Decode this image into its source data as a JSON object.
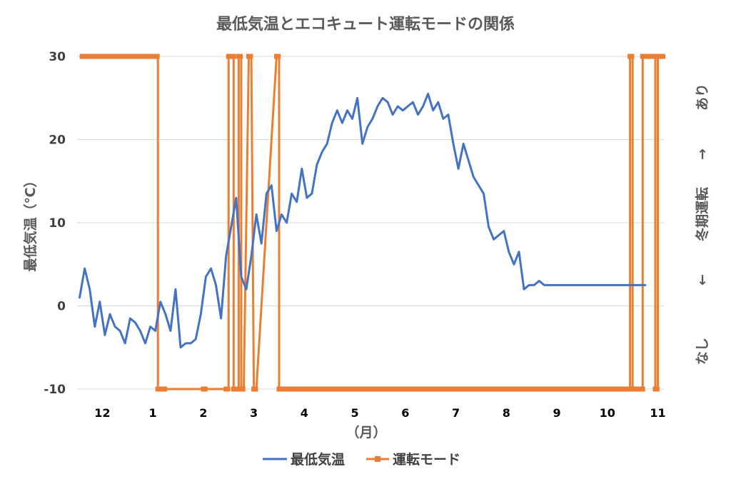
{
  "chart_data": {
    "type": "line",
    "title": "最低気温とエコキュート運転モードの関係",
    "xlabel": "（月）",
    "ylabel": "最低気温（℃）",
    "y2label_top": "あり",
    "y2label_middle": "冬期運転",
    "y2label_bottom": "なし",
    "y2label_up_arrow": "→",
    "y2label_down_arrow": "←",
    "ylim": [
      -10,
      30
    ],
    "yticks": [
      "30",
      "20",
      "10",
      "0",
      "-10"
    ],
    "grid": true,
    "legend_position": "bottom",
    "x_categories": [
      "12",
      "1",
      "2",
      "3",
      "4",
      "5",
      "6",
      "7",
      "8",
      "9",
      "10",
      "11"
    ],
    "x_note": "x values are approximate month positions (12 = start of December, 1 = start of January, 2 = start of February, ...)",
    "series": [
      {
        "name": "最低気温",
        "color": "#4472c4",
        "marker": "none",
        "x": [
          11.55,
          11.65,
          11.75,
          11.85,
          11.95,
          12.05,
          12.15,
          12.25,
          12.35,
          12.45,
          12.55,
          12.65,
          12.75,
          12.85,
          12.95,
          13.05,
          13.15,
          13.25,
          13.35,
          13.45,
          13.55,
          13.65,
          13.75,
          13.85,
          13.95,
          14.05,
          14.15,
          14.25,
          14.35,
          14.45,
          14.55,
          14.65,
          14.75,
          14.85,
          14.95,
          15.05,
          15.15,
          15.25,
          15.35,
          15.45,
          15.55,
          15.65,
          15.75,
          15.85,
          15.95,
          16.05,
          16.15,
          16.25,
          16.35,
          16.45,
          16.55,
          16.65,
          16.75,
          16.85,
          16.95,
          17.05,
          17.15,
          17.25,
          17.35,
          17.45,
          17.55,
          17.65,
          17.75,
          17.85,
          17.95,
          18.05,
          18.15,
          18.25,
          18.35,
          18.45,
          18.55,
          18.65,
          18.75,
          18.85,
          18.95,
          19.05,
          19.15,
          19.25,
          19.35,
          19.45,
          19.55,
          19.65,
          19.75,
          19.85,
          19.95,
          20.05,
          20.15,
          20.25,
          20.35,
          20.45,
          20.55,
          20.65,
          20.75,
          20.85,
          20.95,
          21.05,
          21.15,
          21.25,
          21.35,
          21.45,
          21.55,
          21.65,
          21.75,
          21.85,
          21.95,
          22.05,
          22.15,
          22.25,
          22.35,
          22.45,
          22.55,
          22.65,
          22.75
        ],
        "values": [
          1.0,
          4.5,
          2.0,
          -2.5,
          0.5,
          -3.5,
          -1.0,
          -2.5,
          -3.0,
          -4.5,
          -1.5,
          -2.0,
          -3.0,
          -4.5,
          -2.5,
          -3.0,
          0.5,
          -1.0,
          -3.0,
          2.0,
          -5.0,
          -4.5,
          -4.5,
          -4.0,
          -1.0,
          3.5,
          4.5,
          2.5,
          -1.5,
          6.0,
          9.5,
          13.0,
          3.5,
          2.0,
          6.0,
          11.0,
          7.5,
          13.5,
          14.5,
          9.0,
          11.0,
          10.0,
          13.5,
          12.5,
          16.5,
          13.0,
          13.5,
          17.0,
          18.5,
          19.5,
          22.0,
          23.5,
          22.0,
          23.5,
          22.5,
          25.0,
          19.5,
          21.5,
          22.5,
          24.0,
          25.0,
          24.5,
          23.0,
          24.0,
          23.5,
          24.0,
          24.5,
          23.0,
          24.0,
          25.5,
          23.5,
          24.5,
          22.5,
          23.0,
          19.5,
          16.5,
          19.5,
          17.5,
          15.5,
          14.5,
          13.5,
          9.5,
          8.0,
          8.5,
          9.0,
          6.5,
          5.0,
          6.5,
          2.0,
          2.5,
          2.5,
          3.0,
          2.5,
          2.5,
          2.5,
          2.5,
          2.5,
          2.5,
          2.5,
          2.5,
          2.5,
          2.5,
          2.5,
          2.5,
          2.5,
          2.5,
          2.5,
          2.5,
          2.5,
          2.5,
          2.5,
          2.5,
          2.5
        ]
      },
      {
        "name": "運転モード",
        "color": "#ed7d31",
        "marker": "square",
        "segments": [
          {
            "from": 11.6,
            "to": 13.1,
            "value": 30
          },
          {
            "from": 13.1,
            "to": 13.15,
            "value": -10
          },
          {
            "from": 13.2,
            "to": 13.25,
            "value": -10
          },
          {
            "from": 14.0,
            "to": 14.05,
            "value": -10
          },
          {
            "from": 14.45,
            "to": 14.5,
            "value": -10
          },
          {
            "from": 14.5,
            "to": 14.6,
            "value": 30
          },
          {
            "from": 14.6,
            "to": 14.7,
            "value": -10
          },
          {
            "from": 14.7,
            "to": 14.75,
            "value": 30
          },
          {
            "from": 14.75,
            "to": 14.8,
            "value": -10
          },
          {
            "from": 14.9,
            "to": 14.95,
            "value": 30
          },
          {
            "from": 15.0,
            "to": 15.05,
            "value": -10
          },
          {
            "from": 15.45,
            "to": 15.5,
            "value": 30
          },
          {
            "from": 15.5,
            "to": 22.45,
            "value": -10
          },
          {
            "from": 22.45,
            "to": 22.5,
            "value": 30
          },
          {
            "from": 22.5,
            "to": 22.7,
            "value": -10
          },
          {
            "from": 22.7,
            "to": 22.95,
            "value": 30
          },
          {
            "from": 22.95,
            "to": 23.0,
            "value": -10
          },
          {
            "from": 23.0,
            "to": 23.1,
            "value": 30
          }
        ]
      }
    ]
  }
}
